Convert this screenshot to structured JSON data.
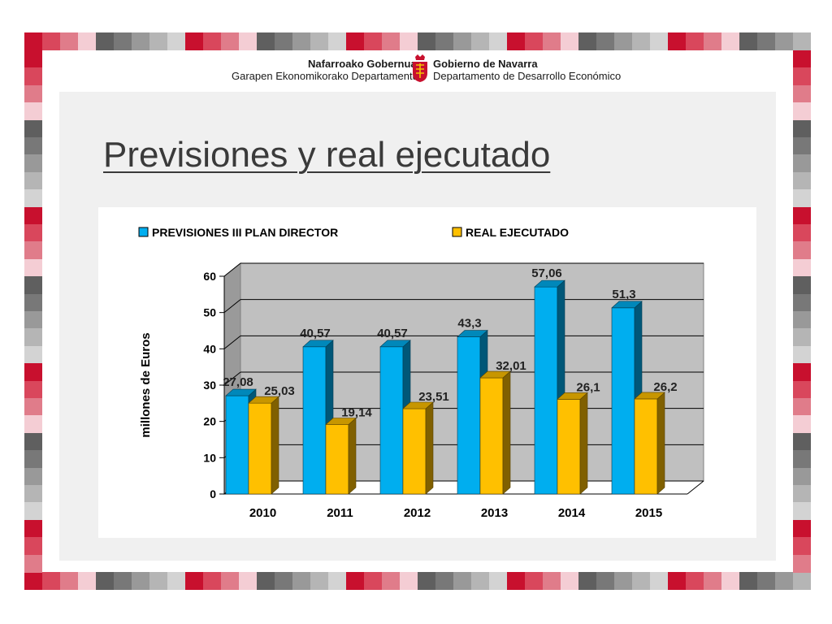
{
  "header": {
    "left_line1": "Nafarroako Gobernua",
    "left_line2": "Garapen Ekonomikorako Departamentua",
    "right_line1": "Gobierno de Navarra",
    "right_line2": "Departamento de Desarrollo Económico"
  },
  "slide": {
    "title": "Previsiones y real ejecutado"
  },
  "colors": {
    "prevision": "#00aeef",
    "real": "#ffc000"
  },
  "chart_data": {
    "type": "bar",
    "title": "",
    "xlabel": "",
    "ylabel": "millones de Euros",
    "ylim": [
      0,
      60
    ],
    "yticks": [
      "0",
      "10",
      "20",
      "30",
      "40",
      "50",
      "60"
    ],
    "categories": [
      "2010",
      "2011",
      "2012",
      "2013",
      "2014",
      "2015"
    ],
    "legend_position": "top",
    "grid": true,
    "series": [
      {
        "name": "PREVISIONES III PLAN DIRECTOR",
        "values": [
          27.08,
          40.57,
          40.57,
          43.3,
          57.06,
          51.3
        ],
        "labels": [
          "27,08",
          "40,57",
          "40,57",
          "43,3",
          "57,06",
          "51,3"
        ]
      },
      {
        "name": "REAL EJECUTADO",
        "values": [
          25.03,
          19.14,
          23.51,
          32.01,
          26.1,
          26.2
        ],
        "labels": [
          "25,03",
          "19,14",
          "23,51",
          "32,01",
          "26,1",
          "26,2"
        ]
      }
    ]
  }
}
